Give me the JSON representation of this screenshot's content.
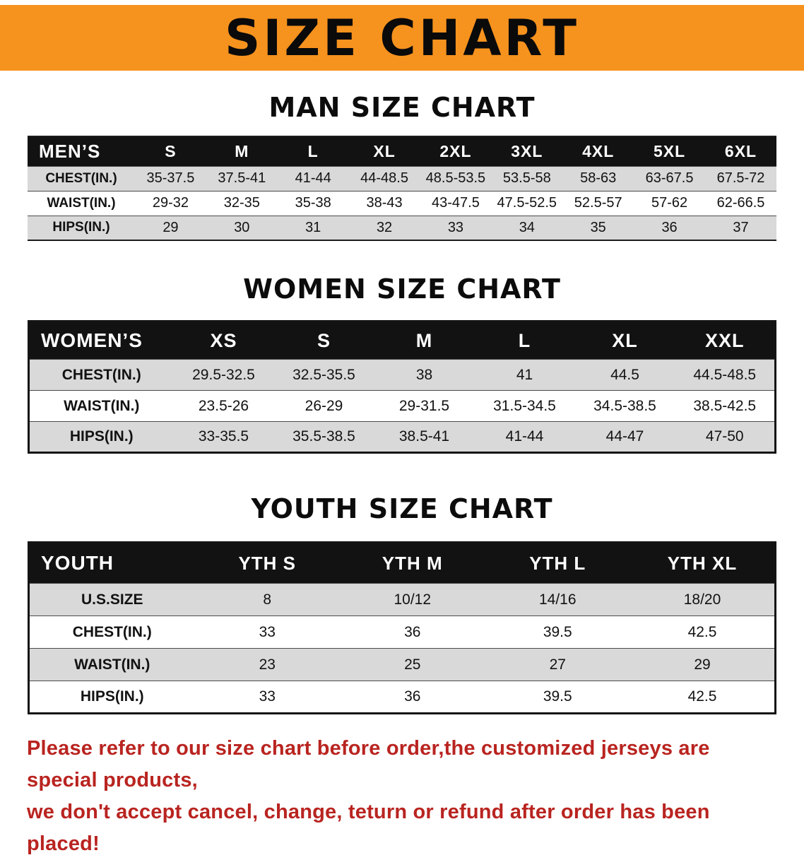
{
  "banner": {
    "title": "SIZE CHART"
  },
  "colors": {
    "accent": "#f6921e",
    "headerbg": "#121212",
    "rowalt": "#d9d9d9",
    "red": "#b92420"
  },
  "tables": {
    "men": {
      "heading": "MAN SIZE CHART",
      "header": [
        "MEN’S",
        "S",
        "M",
        "L",
        "XL",
        "2XL",
        "3XL",
        "4XL",
        "5XL",
        "6XL"
      ],
      "rows": [
        {
          "label": "CHEST(IN.)",
          "values": [
            "35-37.5",
            "37.5-41",
            "41-44",
            "44-48.5",
            "48.5-53.5",
            "53.5-58",
            "58-63",
            "63-67.5",
            "67.5-72"
          ]
        },
        {
          "label": "WAIST(IN.)",
          "values": [
            "29-32",
            "32-35",
            "35-38",
            "38-43",
            "43-47.5",
            "47.5-52.5",
            "52.5-57",
            "57-62",
            "62-66.5"
          ]
        },
        {
          "label": "HIPS(IN.)",
          "values": [
            "29",
            "30",
            "31",
            "32",
            "33",
            "34",
            "35",
            "36",
            "37"
          ]
        }
      ]
    },
    "women": {
      "heading": "WOMEN SIZE CHART",
      "header": [
        "WOMEN’S",
        "XS",
        "S",
        "M",
        "L",
        "XL",
        "XXL"
      ],
      "rows": [
        {
          "label": "CHEST(IN.)",
          "values": [
            "29.5-32.5",
            "32.5-35.5",
            "38",
            "41",
            "44.5",
            "44.5-48.5"
          ]
        },
        {
          "label": "WAIST(IN.)",
          "values": [
            "23.5-26",
            "26-29",
            "29-31.5",
            "31.5-34.5",
            "34.5-38.5",
            "38.5-42.5"
          ]
        },
        {
          "label": "HIPS(IN.)",
          "values": [
            "33-35.5",
            "35.5-38.5",
            "38.5-41",
            "41-44",
            "44-47",
            "47-50"
          ]
        }
      ]
    },
    "youth": {
      "heading": "YOUTH SIZE CHART",
      "header": [
        "YOUTH",
        "YTH S",
        "YTH M",
        "YTH L",
        "YTH XL"
      ],
      "rows": [
        {
          "label": "U.S.SIZE",
          "values": [
            "8",
            "10/12",
            "14/16",
            "18/20"
          ]
        },
        {
          "label": "CHEST(IN.)",
          "values": [
            "33",
            "36",
            "39.5",
            "42.5"
          ]
        },
        {
          "label": "WAIST(IN.)",
          "values": [
            "23",
            "25",
            "27",
            "29"
          ]
        },
        {
          "label": "HIPS(IN.)",
          "values": [
            "33",
            "36",
            "39.5",
            "42.5"
          ]
        }
      ]
    }
  },
  "disclaimer": {
    "line1": "Please refer to our size chart before order,the customized jerseys are special products,",
    "line2": "we don't accept cancel, change, teturn or refund after order has been placed!"
  }
}
